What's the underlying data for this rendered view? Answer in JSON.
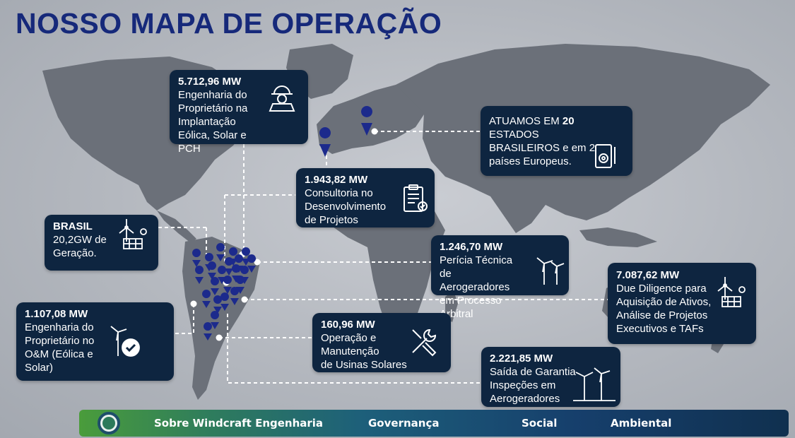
{
  "title": "NOSSO MAPA DE OPERAÇÃO",
  "colors": {
    "title": "#16297a",
    "card": "#0e2540",
    "pin": "#1c2a8c"
  },
  "cards": {
    "brasil": {
      "mw": "BRASIL",
      "desc": "20,2GW de\nGeração."
    },
    "owner_impl": {
      "mw": "5.712,96 MW",
      "desc": "Engenharia do\nProprietário na\nImplantação\nEólica, Solar e\nPCH"
    },
    "consult": {
      "mw": "1.943,82 MW",
      "desc": "Consultoria no\nDesenvolvimento\nde Projetos"
    },
    "states": {
      "pre": "ATUAMOS EM ",
      "bold": "20",
      "post": "\nESTADOS\nBRASILEIROS e em 2\npaíses Europeus."
    },
    "pericia": {
      "mw": "1.246,70 MW",
      "desc": "Perícia Técnica\nde\nAerogeradores\nem Processo\nArbitral"
    },
    "due": {
      "mw": "7.087,62 MW",
      "desc": "Due Diligence para\nAquisição de Ativos,\nAnálise de Projetos\nExecutivos e TAFs"
    },
    "owner_om": {
      "mw": "1.107,08 MW",
      "desc": "Engenharia do\nProprietário no\nO&M (Eólica e\nSolar)"
    },
    "om": {
      "mw": "160,96 MW",
      "desc": "Operação e\nManutenção\nde Usinas Solares"
    },
    "warranty": {
      "mw": "2.221,85 MW",
      "desc": "Saída de Garantia\nInspeções em\nAerogeradores"
    }
  },
  "nav": {
    "items": [
      "Sobre Windcraft Engenharia",
      "Governança",
      "Social",
      "Ambiental"
    ]
  }
}
